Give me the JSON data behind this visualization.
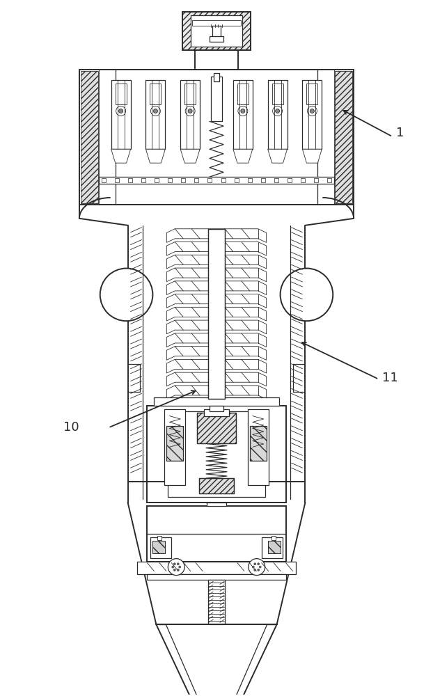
{
  "bg_color": "#ffffff",
  "line_color": "#2a2a2a",
  "label_1": "1",
  "label_10": "10",
  "label_11": "11",
  "label_fontsize": 13,
  "fig_width": 6.22,
  "fig_height": 10.0,
  "dpi": 100
}
